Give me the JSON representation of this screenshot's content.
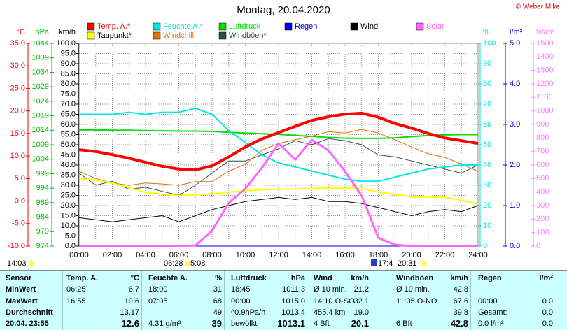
{
  "chart_data": {
    "type": "line",
    "title": "Montag, 20.04.2020",
    "copyright": "© Weber Mike",
    "grid": true,
    "x": [
      0,
      1,
      2,
      3,
      4,
      5,
      6,
      7,
      8,
      9,
      10,
      11,
      12,
      13,
      14,
      15,
      16,
      17,
      18,
      19,
      20,
      21,
      22,
      23,
      24
    ],
    "xlim": [
      0,
      24
    ],
    "xticks": [
      {
        "value": 0,
        "label": "00:00"
      },
      {
        "value": 2,
        "label": "02:00"
      },
      {
        "value": 4,
        "label": "04:00"
      },
      {
        "value": 6,
        "label": "06:00"
      },
      {
        "value": 8,
        "label": "08:00"
      },
      {
        "value": 10,
        "label": "10:00"
      },
      {
        "value": 12,
        "label": "12:00"
      },
      {
        "value": 14,
        "label": "14:00"
      },
      {
        "value": 16,
        "label": "16:00"
      },
      {
        "value": 18,
        "label": "18:00"
      },
      {
        "value": 20,
        "label": "20:00"
      },
      {
        "value": 22,
        "label": "22:00"
      },
      {
        "value": 24,
        "label": "24:00"
      }
    ],
    "y_axes": [
      {
        "label": "°C",
        "color": "#ff0000",
        "lim": [
          -10,
          35
        ],
        "ticks": [
          {
            "value": -10,
            "label": "-10.0"
          },
          {
            "value": -5,
            "label": "-5.0"
          },
          {
            "value": 0,
            "label": "0.0"
          },
          {
            "value": 5,
            "label": "5.0"
          },
          {
            "value": 10,
            "label": "10.0"
          },
          {
            "value": 15,
            "label": "15.0"
          },
          {
            "value": 20,
            "label": "20.0"
          },
          {
            "value": 25,
            "label": "25.0"
          },
          {
            "value": 30,
            "label": "30.0"
          },
          {
            "value": 35,
            "label": "35.0"
          }
        ]
      },
      {
        "label": "hPa",
        "color": "#00c000",
        "lim": [
          974,
          1044
        ],
        "ticks": [
          974,
          979,
          984,
          989,
          994,
          999,
          1004,
          1009,
          1014,
          1019,
          1024,
          1029,
          1034,
          1039,
          1044
        ]
      },
      {
        "label": "km/h",
        "color": "#000000",
        "lim": [
          0,
          100
        ],
        "ticks": [
          {
            "value": 0,
            "label": "0.0"
          },
          {
            "value": 5,
            "label": "5.0"
          },
          {
            "value": 10,
            "label": "10.0"
          },
          {
            "value": 15,
            "label": "15.0"
          },
          {
            "value": 20,
            "label": "20.0"
          },
          {
            "value": 25,
            "label": "25.0"
          },
          {
            "value": 30,
            "label": "30.0"
          },
          {
            "value": 35,
            "label": "35.0"
          },
          {
            "value": 40,
            "label": "40.0"
          },
          {
            "value": 45,
            "label": "45.0"
          },
          {
            "value": 50,
            "label": "50.0"
          },
          {
            "value": 55,
            "label": "55.0"
          },
          {
            "value": 60,
            "label": "60.0"
          },
          {
            "value": 65,
            "label": "65.0"
          },
          {
            "value": 70,
            "label": "70.0"
          },
          {
            "value": 75,
            "label": "75.0"
          },
          {
            "value": 80,
            "label": "80.0"
          },
          {
            "value": 85,
            "label": "85.0"
          },
          {
            "value": 90,
            "label": "90.0"
          },
          {
            "value": 95,
            "label": "95.0"
          },
          {
            "value": 100,
            "label": "100.0"
          }
        ]
      },
      {
        "label": "%",
        "color": "#00e0e0",
        "lim": [
          0,
          100
        ],
        "ticks": [
          0,
          10,
          20,
          30,
          40,
          50,
          60,
          70,
          80,
          90,
          100
        ]
      },
      {
        "label": "l/m²",
        "color": "#0000ff",
        "lim": [
          0,
          5
        ],
        "ticks": [
          {
            "value": 0,
            "label": "0.0"
          },
          {
            "value": 1,
            "label": "1.0"
          },
          {
            "value": 2,
            "label": "2.0"
          },
          {
            "value": 3,
            "label": "3.0"
          },
          {
            "value": 4,
            "label": "4.0"
          },
          {
            "value": 5,
            "label": "5.0"
          }
        ]
      },
      {
        "label": "W/m²",
        "color": "#ff80ff",
        "lim": [
          0,
          1500
        ],
        "ticks": [
          0,
          100,
          200,
          300,
          400,
          500,
          600,
          700,
          800,
          900,
          1000,
          1100,
          1200,
          1300,
          1400,
          1500
        ]
      }
    ],
    "series": [
      {
        "name": "Temp. A.*",
        "color": "#ff0000",
        "axis": 0,
        "values": [
          11.4,
          11.0,
          10.3,
          9.5,
          8.6,
          7.7,
          7.1,
          6.9,
          7.8,
          9.8,
          12.0,
          13.8,
          15.2,
          16.6,
          17.9,
          18.7,
          19.3,
          19.5,
          18.6,
          17.2,
          16.2,
          15.0,
          14.0,
          13.4,
          12.8
        ]
      },
      {
        "name": "Feuchte A.*",
        "color": "#00e8e8",
        "axis": 3,
        "values": [
          65,
          65,
          65,
          66,
          65,
          66,
          66,
          68,
          65,
          57,
          51,
          45,
          41,
          39,
          37,
          35,
          33,
          32,
          32,
          34,
          36,
          38,
          39,
          40,
          40
        ]
      },
      {
        "name": "Luftdruck",
        "color": "#00e000",
        "axis": 1,
        "values": [
          1014.1,
          1014.1,
          1014.0,
          1014.0,
          1013.9,
          1013.8,
          1013.7,
          1013.7,
          1013.6,
          1013.3,
          1013.0,
          1012.8,
          1012.6,
          1012.2,
          1011.9,
          1011.5,
          1011.3,
          1011.2,
          1011.2,
          1011.4,
          1011.8,
          1012.2,
          1012.4,
          1012.5,
          1012.5
        ]
      },
      {
        "name": "Regen",
        "color": "#0000ff",
        "axis": 4,
        "values": [
          0,
          0,
          0,
          0,
          0,
          0,
          0,
          0,
          0,
          0,
          0,
          0,
          0,
          0,
          0,
          0,
          0,
          0,
          0,
          0,
          0,
          0,
          0,
          0,
          0
        ]
      },
      {
        "name": "Wind",
        "color": "#000000",
        "axis": 2,
        "values": [
          14,
          13,
          12,
          13,
          14,
          15,
          12,
          15,
          18,
          20,
          22,
          23,
          24,
          23,
          24,
          22,
          22,
          21,
          19,
          17,
          15,
          17,
          18,
          17,
          20
        ]
      },
      {
        "name": "Solar",
        "color": "#ff66ff",
        "axis": 5,
        "values": [
          0,
          0,
          0,
          0,
          0,
          0,
          0,
          5,
          114,
          320,
          424,
          580,
          760,
          640,
          786,
          708,
          553,
          372,
          62,
          10,
          0,
          0,
          0,
          0,
          0
        ]
      },
      {
        "name": "Taupunkt*",
        "color": "#ffff00",
        "axis": 0,
        "values": [
          5.0,
          4.6,
          4.0,
          3.0,
          1.9,
          1.5,
          1.2,
          1.4,
          1.6,
          2.0,
          2.3,
          2.5,
          2.6,
          2.7,
          2.8,
          2.9,
          2.9,
          2.8,
          2.0,
          1.5,
          0.9,
          0.9,
          0.8,
          0.2,
          -0.7
        ]
      },
      {
        "name": "Windchill",
        "color": "#e07000",
        "axis": 0,
        "values": [
          6.6,
          5.0,
          4.0,
          3.5,
          4.0,
          3.8,
          3.5,
          4.3,
          4.3,
          6.6,
          8.2,
          11.3,
          12.8,
          13.6,
          14.4,
          15.4,
          15.1,
          15.9,
          15.1,
          13.6,
          12.0,
          10.5,
          9.7,
          8.2,
          6.6
        ]
      },
      {
        "name": "Windböen*",
        "color": "#2f4f4f",
        "axis": 2,
        "values": [
          36,
          30,
          32,
          28,
          29,
          27,
          25,
          30,
          36,
          42,
          42,
          45,
          48,
          52,
          50,
          53,
          52,
          50,
          45,
          44,
          42,
          40,
          38,
          36,
          40
        ]
      }
    ],
    "markers": [
      "14:03",
      "06:28",
      "5:08",
      "17:4",
      "20:31"
    ]
  },
  "table": {
    "header": [
      "Sensor",
      "Temp. A.",
      "°C",
      "Feuchte A.",
      "%",
      "Luftdruck",
      "hPa",
      "Wind",
      "km/h",
      "Windböen",
      "km/h",
      "Regen",
      "l/m²"
    ],
    "rows": [
      [
        "MinWert",
        "06:25",
        "6.7",
        "18:00",
        "31",
        "18:45",
        "1011.3",
        "Ø 10 min.",
        "21.2",
        "Ø 10 min.",
        "42.8",
        "",
        ""
      ],
      [
        "MaxWert",
        "16:55",
        "19.6",
        "07:05",
        "68",
        "00:00",
        "1015.0",
        "14:10 O-SO",
        "32.1",
        "11:05 O-NO",
        "67.6",
        "00:00",
        "0.0"
      ],
      [
        "Durchschnitt",
        "",
        "13.17",
        "",
        "49",
        "^0.9hPa/h",
        "1013.4",
        "455.4 km",
        "19.0",
        "",
        "39.8",
        "Gesamt:",
        "0.0"
      ],
      [
        "20.04. 23:55",
        "",
        "12.6",
        "4.31 g/m³",
        "39",
        "bewölkt",
        "1013.1",
        "4 Bft",
        "20.1",
        "6 Bft",
        "42.8",
        "0.0 l/m²",
        "0.0"
      ]
    ]
  }
}
